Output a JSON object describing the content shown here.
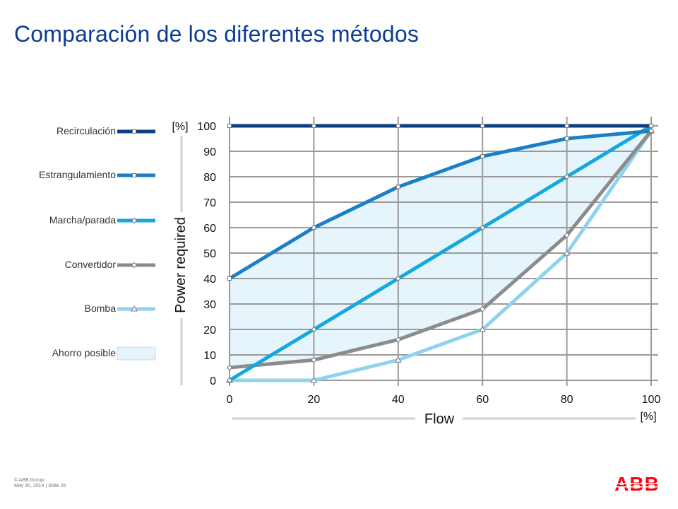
{
  "slide": {
    "title": "Comparación de los diferentes métodos",
    "footer_line1": "© ABB Group",
    "footer_line2": "May 30, 2014 | Slide 26",
    "logo_text": "ABB"
  },
  "colors": {
    "title": "#0a3d91",
    "recirculacion": "#0b3f80",
    "estrangulamiento": "#1a7fc4",
    "marcha_parada": "#14a8dc",
    "convertidor": "#8c8c8c",
    "bomba": "#8ed2ee",
    "ahorro_fill": "#e6f4fb",
    "grid": "#9a9a9a",
    "logo": "#ff000f"
  },
  "chart_data": {
    "type": "line",
    "xlabel": "Flow",
    "ylabel": "Power required",
    "x_unit": "[%]",
    "y_unit": "[%]",
    "xlim": [
      0,
      100
    ],
    "ylim": [
      0,
      100
    ],
    "x_ticks": [
      0,
      20,
      40,
      60,
      80,
      100
    ],
    "y_ticks": [
      0,
      10,
      20,
      30,
      40,
      50,
      60,
      70,
      80,
      90,
      100
    ],
    "grid": true,
    "legend_position": "left",
    "x": [
      0,
      20,
      40,
      60,
      80,
      100
    ],
    "series": [
      {
        "name": "Recirculación",
        "key": "recirculacion",
        "marker": "square",
        "values": [
          100,
          100,
          100,
          100,
          100,
          100
        ]
      },
      {
        "name": "Estrangulamiento",
        "key": "estrangulamiento",
        "marker": "square",
        "values": [
          40,
          60,
          76,
          88,
          95,
          98
        ]
      },
      {
        "name": "Marcha/parada",
        "key": "marcha_parada",
        "marker": "diamond",
        "values": [
          0,
          20,
          40,
          60,
          80,
          100
        ]
      },
      {
        "name": "Convertidor",
        "key": "convertidor",
        "marker": "diamond",
        "values": [
          5,
          8,
          16,
          28,
          57,
          98
        ]
      },
      {
        "name": "Bomba",
        "key": "bomba",
        "marker": "triangle",
        "values": [
          0,
          0,
          8,
          20,
          50,
          98
        ]
      }
    ],
    "area": {
      "name": "Ahorro posible",
      "key": "ahorro_fill",
      "upper_series": "Estrangulamiento",
      "lower_series": "Convertidor"
    }
  }
}
